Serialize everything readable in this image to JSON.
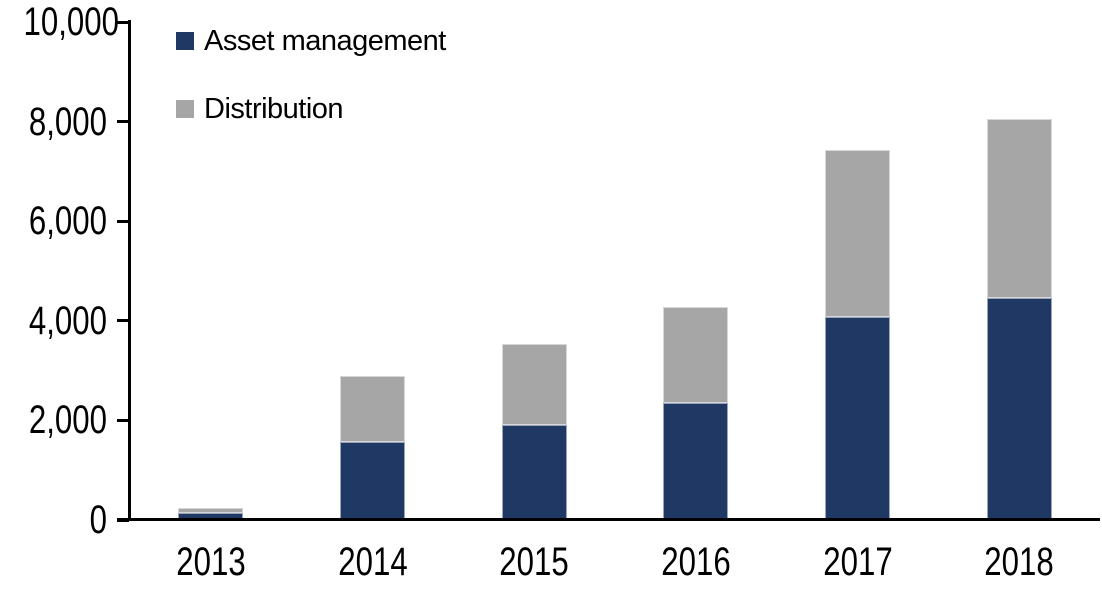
{
  "chart_data": {
    "type": "bar",
    "stacked": true,
    "title": "",
    "xlabel": "",
    "ylabel": "",
    "categories": [
      "2013",
      "2014",
      "2015",
      "2016",
      "2017",
      "2018"
    ],
    "series": [
      {
        "name": "Asset management",
        "color": "#1F3864",
        "values": [
          120,
          1550,
          1890,
          2320,
          4050,
          4430
        ]
      },
      {
        "name": "Distribution",
        "color": "#A6A6A6",
        "values": [
          100,
          1320,
          1620,
          1940,
          3360,
          3600
        ]
      }
    ],
    "totals": [
      220,
      2870,
      3510,
      4260,
      7410,
      8030
    ],
    "ylim": [
      0,
      10000
    ],
    "y_ticks": [
      {
        "value": 0,
        "label": "0"
      },
      {
        "value": 2000,
        "label": "2,000"
      },
      {
        "value": 4000,
        "label": "4,000"
      },
      {
        "value": 6000,
        "label": "6,000"
      },
      {
        "value": 8000,
        "label": "8,000"
      },
      {
        "value": 10000,
        "label": "10,000"
      }
    ],
    "grid": false,
    "legend_position": "top-left-inside"
  },
  "colors": {
    "axis": "#000000",
    "background": "#FFFFFF",
    "text": "#000000",
    "asset_management": "#1F3864",
    "distribution": "#A6A6A6"
  }
}
